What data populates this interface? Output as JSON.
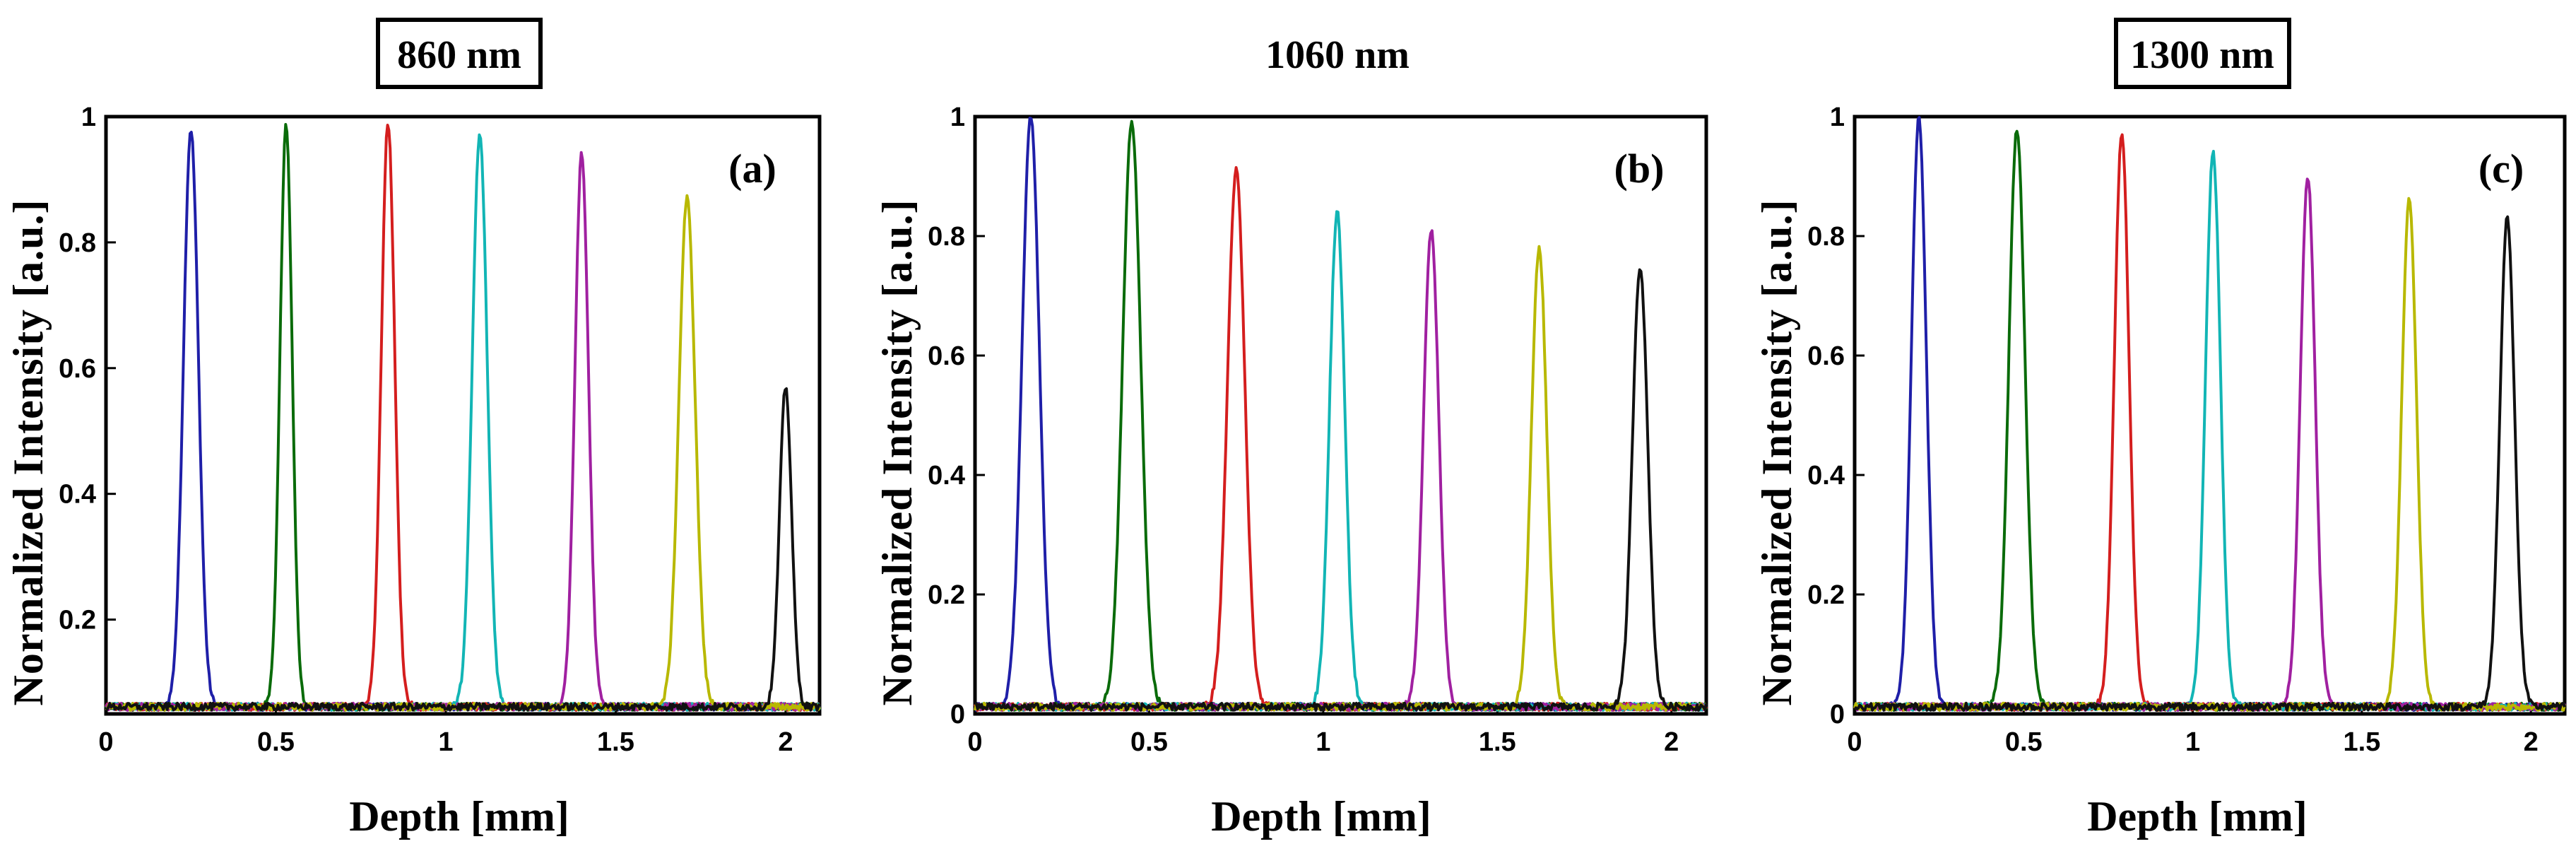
{
  "chart_data": [
    {
      "type": "line",
      "title": "860 nm",
      "panel_label": "(a)",
      "xlabel": "Depth [mm]",
      "ylabel": "Normalized Intensity [a.u.]",
      "xlim": [
        0,
        2.1
      ],
      "ylim": [
        0.05,
        1
      ],
      "xticks": [
        0,
        0.5,
        1,
        1.5,
        2
      ],
      "xtick_labels": [
        "0",
        "0.5",
        "1",
        "1.5",
        "2"
      ],
      "yticks": [
        0.2,
        0.4,
        0.6,
        0.8,
        1
      ],
      "ytick_labels": [
        "0.2",
        "0.4",
        "0.6",
        "0.8",
        "1"
      ],
      "grid": false,
      "series": [
        {
          "name": "peak 1",
          "color": "#1f1fa8",
          "center": 0.25,
          "peak": 0.98,
          "width": 0.022
        },
        {
          "name": "peak 2",
          "color": "#0a6b0a",
          "center": 0.53,
          "peak": 0.99,
          "width": 0.018
        },
        {
          "name": "peak 3",
          "color": "#d41e1e",
          "center": 0.83,
          "peak": 0.99,
          "width": 0.02
        },
        {
          "name": "peak 4",
          "color": "#12b5b5",
          "center": 1.1,
          "peak": 0.97,
          "width": 0.022
        },
        {
          "name": "peak 5",
          "color": "#a020a0",
          "center": 1.4,
          "peak": 0.94,
          "width": 0.02
        },
        {
          "name": "peak 6",
          "color": "#b8b800",
          "center": 1.71,
          "peak": 0.87,
          "width": 0.024
        },
        {
          "name": "peak 7",
          "color": "#111111",
          "center": 2.0,
          "peak": 0.57,
          "width": 0.018
        }
      ]
    },
    {
      "type": "line",
      "title": "1060 nm",
      "panel_label": "(b)",
      "xlabel": "Depth [mm]",
      "ylabel": "Normalized Intensity [a.u.]",
      "xlim": [
        0,
        2.1
      ],
      "ylim": [
        0,
        1
      ],
      "xticks": [
        0,
        0.5,
        1,
        1.5,
        2
      ],
      "xtick_labels": [
        "0",
        "0.5",
        "1",
        "1.5",
        "2"
      ],
      "yticks": [
        0,
        0.2,
        0.4,
        0.6,
        0.8,
        1
      ],
      "ytick_labels": [
        "0",
        "0.2",
        "0.4",
        "0.6",
        "0.8",
        "1"
      ],
      "grid": false,
      "series": [
        {
          "name": "peak 1",
          "color": "#1f1fa8",
          "center": 0.16,
          "peak": 1.0,
          "width": 0.025
        },
        {
          "name": "peak 2",
          "color": "#0a6b0a",
          "center": 0.45,
          "peak": 0.99,
          "width": 0.026
        },
        {
          "name": "peak 3",
          "color": "#d41e1e",
          "center": 0.75,
          "peak": 0.91,
          "width": 0.025
        },
        {
          "name": "peak 4",
          "color": "#12b5b5",
          "center": 1.04,
          "peak": 0.84,
          "width": 0.022
        },
        {
          "name": "peak 5",
          "color": "#a020a0",
          "center": 1.31,
          "peak": 0.81,
          "width": 0.022
        },
        {
          "name": "peak 6",
          "color": "#b8b800",
          "center": 1.62,
          "peak": 0.78,
          "width": 0.022
        },
        {
          "name": "peak 7",
          "color": "#111111",
          "center": 1.91,
          "peak": 0.75,
          "width": 0.022
        }
      ]
    },
    {
      "type": "line",
      "title": "1300 nm",
      "panel_label": "(c)",
      "xlabel": "Depth [mm]",
      "ylabel": "Normalized Intensity [a.u.]",
      "xlim": [
        0,
        2.1
      ],
      "ylim": [
        0,
        1
      ],
      "xticks": [
        0,
        0.5,
        1,
        1.5,
        2
      ],
      "xtick_labels": [
        "0",
        "0.5",
        "1",
        "1.5",
        "2"
      ],
      "yticks": [
        0,
        0.2,
        0.4,
        0.6,
        0.8,
        1
      ],
      "ytick_labels": [
        "0",
        "0.2",
        "0.4",
        "0.6",
        "0.8",
        "1"
      ],
      "grid": false,
      "series": [
        {
          "name": "peak 1",
          "color": "#1f1fa8",
          "center": 0.19,
          "peak": 1.0,
          "width": 0.022
        },
        {
          "name": "peak 2",
          "color": "#0a6b0a",
          "center": 0.48,
          "peak": 0.98,
          "width": 0.024
        },
        {
          "name": "peak 3",
          "color": "#d41e1e",
          "center": 0.79,
          "peak": 0.97,
          "width": 0.022
        },
        {
          "name": "peak 4",
          "color": "#12b5b5",
          "center": 1.06,
          "peak": 0.94,
          "width": 0.022
        },
        {
          "name": "peak 5",
          "color": "#a020a0",
          "center": 1.34,
          "peak": 0.9,
          "width": 0.022
        },
        {
          "name": "peak 6",
          "color": "#b8b800",
          "center": 1.64,
          "peak": 0.86,
          "width": 0.022
        },
        {
          "name": "peak 7",
          "color": "#111111",
          "center": 1.93,
          "peak": 0.83,
          "width": 0.022
        }
      ]
    }
  ]
}
